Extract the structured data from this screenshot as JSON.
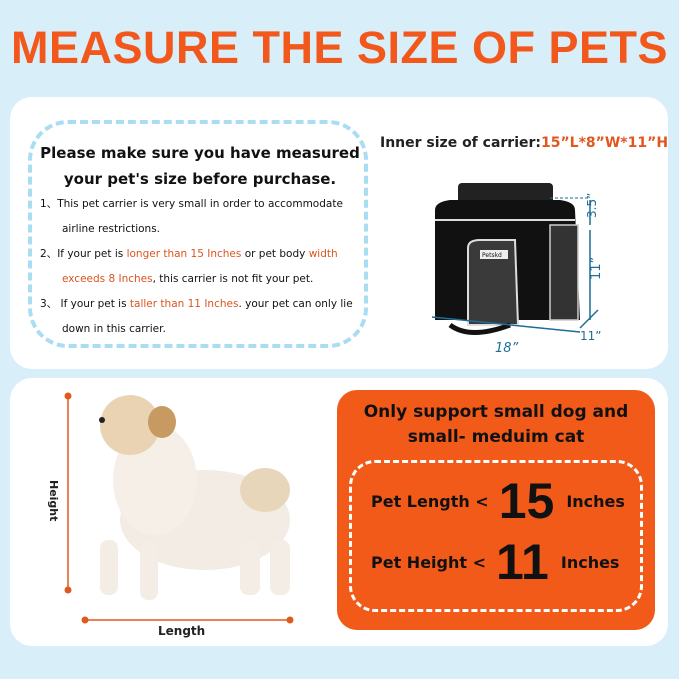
{
  "title": "MEASURE THE SIZE OF PETS",
  "notice": {
    "heading": "Please make sure you have measured your pet's size before purchase.",
    "items": [
      {
        "prefix": "1、",
        "a": "This pet carrier is very small in order  to accommodate airline restrictions.",
        "hl1": "",
        "b": "",
        "hl2": "",
        "c": ""
      },
      {
        "prefix": "2、",
        "a": "If your pet is ",
        "hl1": "longer than 15 Inches",
        "b": " or pet body ",
        "hl2": "width exceeds 8 Inches",
        "c": ", this carrier is not fit your pet."
      },
      {
        "prefix": "3、",
        "a": " If your pet is ",
        "hl1": "taller than 11 Inches",
        "b": ". your pet can only lie down in this carrier.",
        "hl2": "",
        "c": ""
      }
    ]
  },
  "carrier": {
    "label": "Inner size of carrier:",
    "value": "15”L*8”W*11”H",
    "dims": {
      "top": "3.5”",
      "height": "11”",
      "depth": "11”",
      "length": "18”"
    },
    "brand": "Petskd"
  },
  "dog": {
    "height_label": "Height",
    "length_label": "Length"
  },
  "support": {
    "heading": "Only support small dog and small- meduim cat",
    "length": {
      "label": "Pet Length <",
      "value": "15",
      "unit": "Inches"
    },
    "height": {
      "label": "Pet Height <",
      "value": "11",
      "unit": "Inches"
    }
  },
  "colors": {
    "accent": "#f25a1a",
    "background": "#d8eef8",
    "dash": "#a9def2",
    "dimension": "#1d6d96"
  }
}
